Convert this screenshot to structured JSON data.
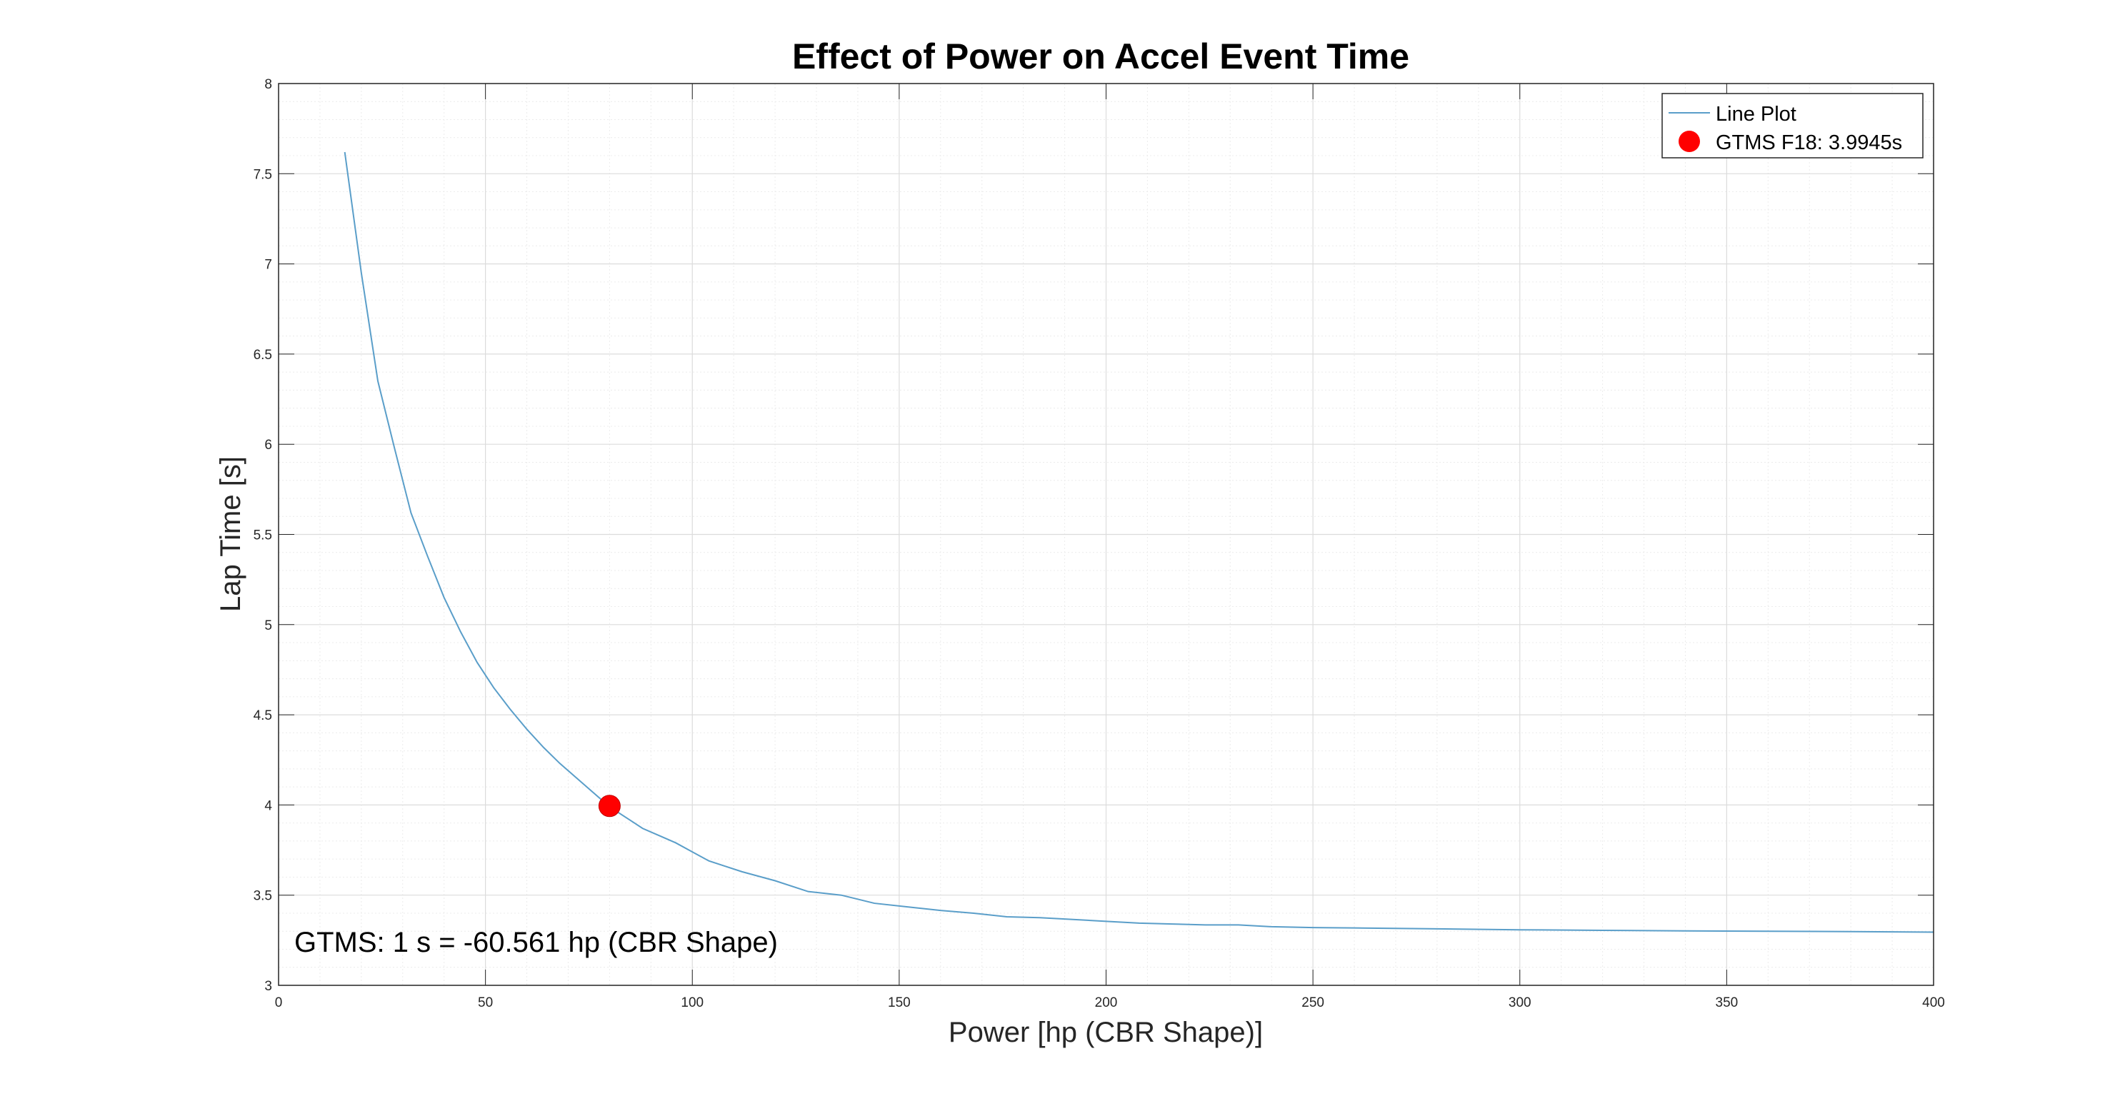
{
  "chart_data": {
    "type": "line",
    "title": "Effect of Power on Accel Event Time",
    "xlabel": "Power [hp (CBR Shape)]",
    "ylabel": "Lap Time [s]",
    "xlim": [
      0,
      400
    ],
    "ylim": [
      3,
      8
    ],
    "x_ticks": [
      0,
      50,
      100,
      150,
      200,
      250,
      300,
      350,
      400
    ],
    "y_ticks": [
      3,
      3.5,
      4,
      4.5,
      5,
      5.5,
      6,
      6.5,
      7,
      7.5,
      8
    ],
    "x_tick_labels": [
      "0",
      "50",
      "100",
      "150",
      "200",
      "250",
      "300",
      "350",
      "400"
    ],
    "y_tick_labels": [
      "3",
      "3.5",
      "4",
      "4.5",
      "5",
      "5.5",
      "6",
      "6.5",
      "7",
      "7.5",
      "8"
    ],
    "grid": true,
    "minor_grid": true,
    "legend_position": "top-right",
    "series": [
      {
        "name": "Line Plot",
        "color": "#5a9ec9",
        "x": [
          16,
          20,
          24,
          28,
          32,
          36,
          40,
          44,
          48,
          52,
          56,
          60,
          64,
          68,
          72,
          76,
          80,
          84,
          88,
          92,
          96,
          100,
          104,
          108,
          112,
          120,
          128,
          136,
          144,
          152,
          160,
          168,
          176,
          184,
          192,
          200,
          208,
          216,
          224,
          232,
          240,
          250,
          260,
          280,
          300,
          320,
          340,
          360,
          380,
          400
        ],
        "y": [
          7.62,
          6.95,
          6.35,
          5.98,
          5.62,
          5.38,
          5.15,
          4.96,
          4.79,
          4.65,
          4.53,
          4.42,
          4.32,
          4.23,
          4.15,
          4.07,
          3.99,
          3.93,
          3.87,
          3.83,
          3.79,
          3.74,
          3.69,
          3.66,
          3.63,
          3.58,
          3.52,
          3.5,
          3.455,
          3.435,
          3.415,
          3.4,
          3.38,
          3.375,
          3.365,
          3.355,
          3.345,
          3.34,
          3.335,
          3.335,
          3.325,
          3.32,
          3.318,
          3.313,
          3.308,
          3.305,
          3.302,
          3.3,
          3.298,
          3.295
        ]
      },
      {
        "name": "GTMS F18: 3.9945s",
        "type": "scatter",
        "color": "#ff0000",
        "x": [
          80
        ],
        "y": [
          3.9945
        ]
      }
    ],
    "annotations": [
      {
        "text": "GTMS: 1 s = -60.561 hp (CBR Shape)"
      }
    ]
  }
}
